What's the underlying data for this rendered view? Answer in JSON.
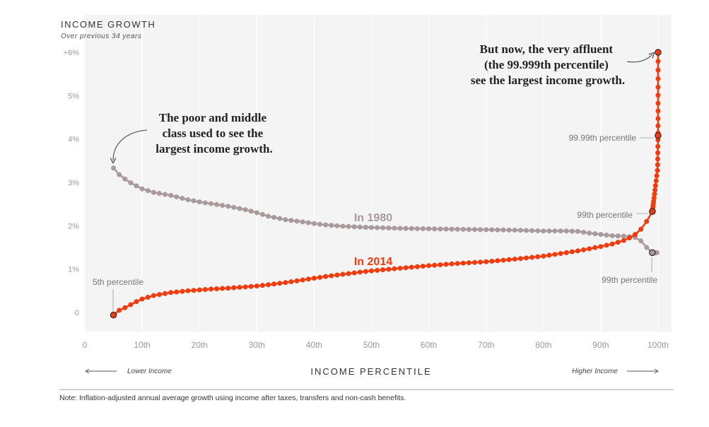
{
  "chart_data": {
    "type": "line",
    "title": "INCOME GROWTH",
    "subtitle": "Over previous 34 years",
    "xlabel": "INCOME PERCENTILE",
    "x_lower_label": "Lower Income",
    "x_higher_label": "Higher Income",
    "xlim": [
      0,
      100
    ],
    "ylim": [
      -0.3,
      6.4
    ],
    "x_ticks": [
      {
        "value": 0,
        "label": "0"
      },
      {
        "value": 10,
        "label": "10th"
      },
      {
        "value": 20,
        "label": "20th"
      },
      {
        "value": 30,
        "label": "30th"
      },
      {
        "value": 40,
        "label": "40th"
      },
      {
        "value": 50,
        "label": "50th"
      },
      {
        "value": 60,
        "label": "60th"
      },
      {
        "value": 70,
        "label": "70th"
      },
      {
        "value": 80,
        "label": "80th"
      },
      {
        "value": 90,
        "label": "90th"
      },
      {
        "value": 100,
        "label": "100th"
      }
    ],
    "y_ticks": [
      {
        "value": 0,
        "label": "0"
      },
      {
        "value": 1,
        "label": "1%"
      },
      {
        "value": 2,
        "label": "2%"
      },
      {
        "value": 3,
        "label": "3%"
      },
      {
        "value": 4,
        "label": "4%"
      },
      {
        "value": 5,
        "label": "5%"
      },
      {
        "value": 6,
        "label": "+6%"
      }
    ],
    "grid": true,
    "series": [
      {
        "name": "In 1980",
        "color": "#a99a9c",
        "x": [
          5,
          6,
          7,
          8,
          9,
          10,
          12,
          15,
          18,
          20,
          22,
          25,
          28,
          30,
          32,
          35,
          38,
          40,
          42,
          45,
          48,
          50,
          55,
          60,
          65,
          70,
          75,
          80,
          82,
          84,
          86,
          88,
          90,
          92,
          94,
          95,
          96,
          97,
          98,
          99,
          99.9,
          99.99,
          99.999
        ],
        "values": [
          3.33,
          3.18,
          3.08,
          2.99,
          2.92,
          2.85,
          2.77,
          2.7,
          2.6,
          2.55,
          2.51,
          2.45,
          2.37,
          2.3,
          2.22,
          2.14,
          2.09,
          2.05,
          2.02,
          1.99,
          1.97,
          1.96,
          1.94,
          1.93,
          1.92,
          1.91,
          1.9,
          1.88,
          1.88,
          1.88,
          1.87,
          1.83,
          1.8,
          1.77,
          1.76,
          1.75,
          1.73,
          1.65,
          1.5,
          1.38,
          1.38,
          1.38,
          1.38
        ]
      },
      {
        "name": "In 2014",
        "color": "#f03c0f",
        "x": [
          5,
          6,
          7,
          8,
          9,
          10,
          12,
          15,
          18,
          20,
          22,
          25,
          28,
          30,
          32,
          35,
          38,
          40,
          42,
          45,
          48,
          50,
          55,
          60,
          65,
          70,
          75,
          80,
          82,
          84,
          86,
          88,
          90,
          92,
          94,
          95,
          96,
          97,
          98,
          99,
          99.9,
          99.99,
          99.999
        ],
        "values": [
          -0.06,
          0.05,
          0.11,
          0.18,
          0.25,
          0.31,
          0.39,
          0.46,
          0.5,
          0.52,
          0.54,
          0.56,
          0.59,
          0.61,
          0.64,
          0.69,
          0.75,
          0.79,
          0.83,
          0.88,
          0.93,
          0.96,
          1.02,
          1.08,
          1.13,
          1.17,
          1.23,
          1.3,
          1.34,
          1.38,
          1.42,
          1.47,
          1.52,
          1.58,
          1.66,
          1.72,
          1.8,
          1.92,
          2.1,
          2.33,
          3.3,
          4.08,
          6.0
        ]
      }
    ],
    "highlighted_points": [
      {
        "series": "In 1980",
        "x": 99,
        "value": 1.38
      },
      {
        "series": "In 2014",
        "x": 5,
        "value": -0.06
      },
      {
        "series": "In 2014",
        "x": 99,
        "value": 2.33
      },
      {
        "series": "In 2014",
        "x": 99.99,
        "value": 4.08
      },
      {
        "series": "In 2014",
        "x": 99.999,
        "value": 6.0
      }
    ],
    "annotations": {
      "poor": [
        "The poor and middle",
        "class used to see the",
        "largest income growth."
      ],
      "affluent": [
        "But now, the very affluent",
        "(the 99.999th percentile)",
        "see the largest income growth."
      ],
      "p5": "5th percentile",
      "p9999": "99.99th percentile",
      "p99_2014": "99th percentile",
      "p99_1980": "99th percentile"
    }
  },
  "note": "Note: Inflation-adjusted annual average growth using income after taxes, transfers and non-cash benefits."
}
